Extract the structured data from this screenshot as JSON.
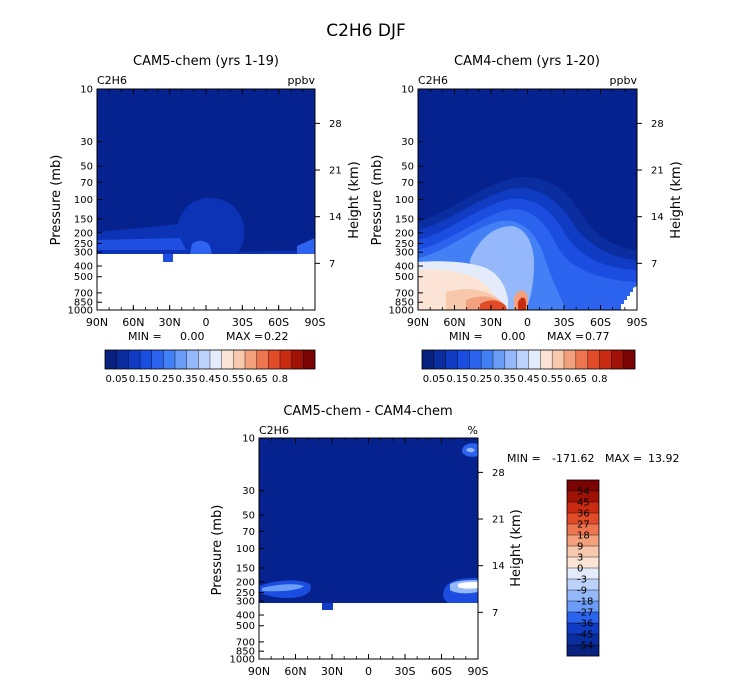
{
  "page_title": "C2H6 DJF",
  "colors": {
    "background": "#ffffff",
    "plot_fill": "#06228f",
    "scale": [
      "#08207e",
      "#0a2da0",
      "#0f3cc3",
      "#1b4ee0",
      "#2b63ee",
      "#4480f5",
      "#6a9cf8",
      "#94b8f9",
      "#bcd2fa",
      "#e4ecfb",
      "#fbe4d6",
      "#f8c8ad",
      "#f3a07c",
      "#ed7650",
      "#e24b28",
      "#c92b12",
      "#a01206",
      "#7a0403"
    ]
  },
  "chart_data": [
    {
      "type": "heatmap",
      "title": "CAM5-chem (yrs 1-19)",
      "variable": "C2H6",
      "units": "ppbv",
      "xlabel": "",
      "ylabel": "Pressure (mb)",
      "ylabel_right": "Height (km)",
      "x_ticks": [
        "90N",
        "60N",
        "30N",
        "0",
        "30S",
        "60S",
        "90S"
      ],
      "y_ticks": [
        "10",
        "30",
        "50",
        "70",
        "100",
        "150",
        "200",
        "250",
        "300",
        "400",
        "500",
        "700",
        "850",
        "1000"
      ],
      "height_ticks": [
        "28",
        "21",
        "14",
        "7"
      ],
      "stats": {
        "min_label": "MIN =",
        "min": "0.00",
        "max_label": "MAX =",
        "max": "0.22"
      },
      "colorbar": {
        "orientation": "horizontal",
        "labels": [
          "0.05",
          "0.15",
          "0.25",
          "0.35",
          "0.45",
          "0.55",
          "0.65",
          "0.8"
        ]
      }
    },
    {
      "type": "heatmap",
      "title": "CAM4-chem (yrs 1-20)",
      "variable": "C2H6",
      "units": "ppbv",
      "xlabel": "",
      "ylabel": "Pressure (mb)",
      "ylabel_right": "Height (km)",
      "x_ticks": [
        "90N",
        "60N",
        "30N",
        "0",
        "30S",
        "60S",
        "90S"
      ],
      "y_ticks": [
        "10",
        "30",
        "50",
        "70",
        "100",
        "150",
        "200",
        "250",
        "300",
        "400",
        "500",
        "700",
        "850",
        "1000"
      ],
      "height_ticks": [
        "28",
        "21",
        "14",
        "7"
      ],
      "stats": {
        "min_label": "MIN =",
        "min": "0.00",
        "max_label": "MAX =",
        "max": "0.77"
      },
      "colorbar": {
        "orientation": "horizontal",
        "labels": [
          "0.05",
          "0.15",
          "0.25",
          "0.35",
          "0.45",
          "0.55",
          "0.65",
          "0.8"
        ]
      }
    },
    {
      "type": "heatmap",
      "title": "CAM5-chem - CAM4-chem",
      "variable": "C2H6",
      "units": "%",
      "xlabel": "",
      "ylabel": "Pressure (mb)",
      "ylabel_right": "Height (km)",
      "x_ticks": [
        "90N",
        "60N",
        "30N",
        "0",
        "30S",
        "60S",
        "90S"
      ],
      "y_ticks": [
        "10",
        "30",
        "50",
        "70",
        "100",
        "150",
        "200",
        "250",
        "300",
        "400",
        "500",
        "700",
        "850",
        "1000"
      ],
      "height_ticks": [
        "28",
        "21",
        "14",
        "7"
      ],
      "stats": {
        "min_label": "MIN =",
        "min": "-171.62",
        "max_label": "MAX =",
        "max": "13.92"
      },
      "colorbar": {
        "orientation": "vertical",
        "labels": [
          "54",
          "45",
          "36",
          "27",
          "18",
          "9",
          "3",
          "0",
          "-3",
          "-9",
          "-18",
          "-27",
          "-36",
          "-45",
          "-54"
        ]
      }
    }
  ]
}
